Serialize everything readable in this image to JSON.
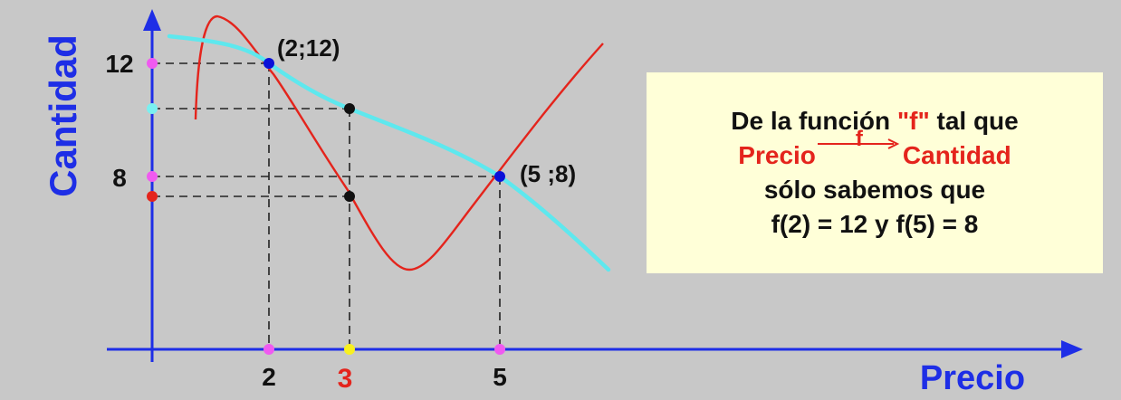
{
  "axes": {
    "y_label": "Cantidad",
    "x_label": "Precio",
    "y_ticks": [
      "12",
      "8"
    ],
    "x_ticks": [
      "2",
      "5"
    ],
    "x_highlight_tick": "3"
  },
  "points": {
    "p1": "(2;12)",
    "p2": "(5 ;8)"
  },
  "info_box": {
    "line1_pre": "De la función ",
    "line1_f": "\"f\"",
    "line1_post": " tal que",
    "line2_left": "Precio",
    "line2_arrow_label": "f",
    "line2_right": "Cantidad",
    "line3": "sólo sabemos que",
    "line4": "f(2) = 12  y f(5) = 8"
  },
  "colors": {
    "axis": "#1e2ee6",
    "red_curve": "#e4241c",
    "cyan_curve": "#5ee8ee",
    "point_blue": "#0a10d8",
    "magenta_dot": "#f05af0",
    "cyan_dot": "#7af0f0",
    "red_dot": "#e4241c",
    "yellow_dot": "#f8f020",
    "box_bg": "#ffffd8"
  }
}
